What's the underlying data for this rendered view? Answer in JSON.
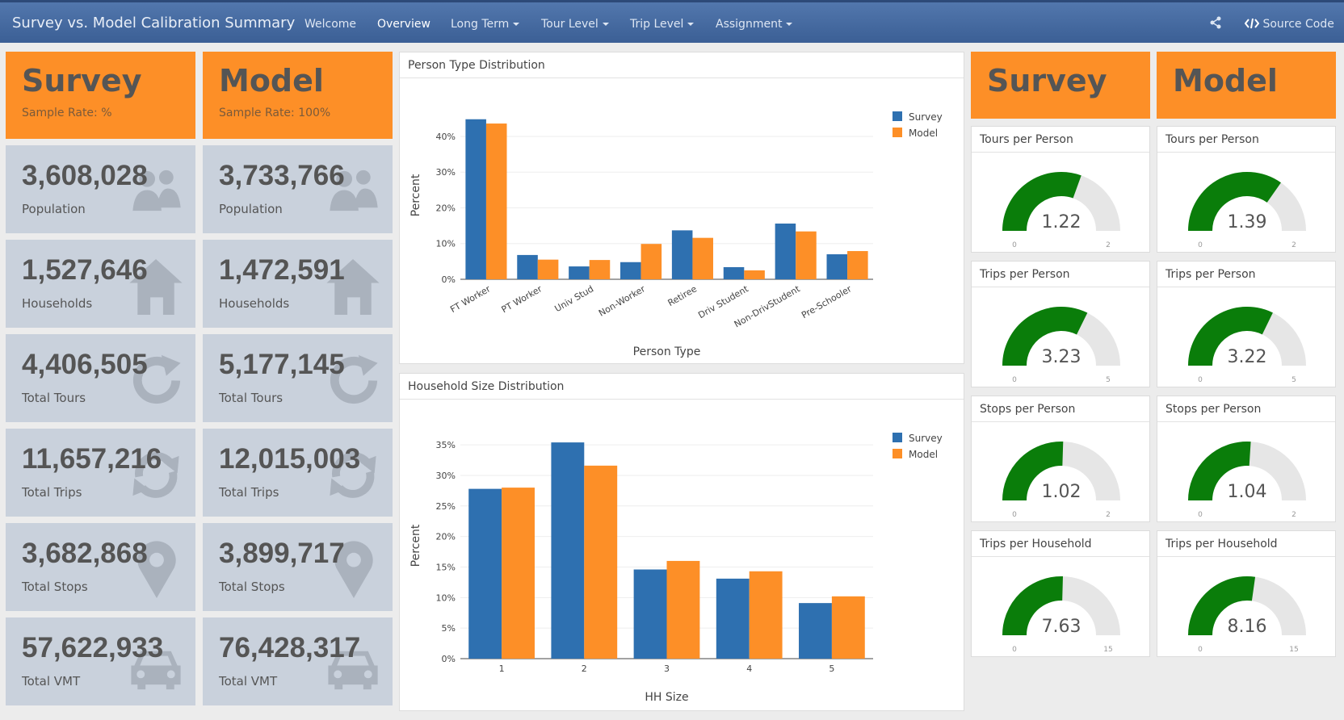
{
  "nav": {
    "title": "Survey vs. Model Calibration Summary",
    "items": [
      "Welcome",
      "Overview",
      "Long Term",
      "Tour Level",
      "Trip Level",
      "Assignment"
    ],
    "source_code": "Source Code"
  },
  "left": {
    "survey": {
      "title": "Survey",
      "sample_rate": "Sample Rate: %",
      "stats": [
        {
          "value": "3,608,028",
          "label": "Population",
          "icon": "people-icon"
        },
        {
          "value": "1,527,646",
          "label": "Households",
          "icon": "home-icon"
        },
        {
          "value": "4,406,505",
          "label": "Total Tours",
          "icon": "refresh-icon"
        },
        {
          "value": "11,657,216",
          "label": "Total Trips",
          "icon": "retweet-icon"
        },
        {
          "value": "3,682,868",
          "label": "Total Stops",
          "icon": "map-marker-icon"
        },
        {
          "value": "57,622,933",
          "label": "Total VMT",
          "icon": "car-icon"
        }
      ]
    },
    "model": {
      "title": "Model",
      "sample_rate": "Sample Rate: 100%",
      "stats": [
        {
          "value": "3,733,766",
          "label": "Population",
          "icon": "people-icon"
        },
        {
          "value": "1,472,591",
          "label": "Households",
          "icon": "home-icon"
        },
        {
          "value": "5,177,145",
          "label": "Total Tours",
          "icon": "refresh-icon"
        },
        {
          "value": "12,015,003",
          "label": "Total Trips",
          "icon": "retweet-icon"
        },
        {
          "value": "3,899,717",
          "label": "Total Stops",
          "icon": "map-marker-icon"
        },
        {
          "value": "76,428,317",
          "label": "Total VMT",
          "icon": "car-icon"
        }
      ]
    }
  },
  "colors": {
    "survey": "#2e70b0",
    "model": "#fd8f27",
    "gauge": "#0a7d0a",
    "gauge_bg": "#e6e6e6"
  },
  "chart_data": [
    {
      "type": "bar",
      "title": "Person Type Distribution",
      "xlabel": "Person Type",
      "ylabel": "Percent",
      "ylim": [
        0,
        47
      ],
      "yticks": [
        0,
        10,
        20,
        30,
        40
      ],
      "tick_suffix": "%",
      "legend": "top-right",
      "grid": true,
      "categories": [
        "FT Worker",
        "PT Worker",
        "Univ Stud",
        "Non-Worker",
        "Retiree",
        "Driv Student",
        "Non-DrivStudent",
        "Pre-Schooler"
      ],
      "series": [
        {
          "name": "Survey",
          "values": [
            44.8,
            6.8,
            3.6,
            4.8,
            13.7,
            3.4,
            15.6,
            7.0
          ]
        },
        {
          "name": "Model",
          "values": [
            43.6,
            5.5,
            5.4,
            9.9,
            11.6,
            2.5,
            13.4,
            7.9
          ]
        }
      ]
    },
    {
      "type": "bar",
      "title": "Household Size Distribution",
      "xlabel": "HH Size",
      "ylabel": "Percent",
      "ylim": [
        0,
        37
      ],
      "yticks": [
        0,
        5,
        10,
        15,
        20,
        25,
        30,
        35
      ],
      "tick_suffix": "%",
      "legend": "top-right",
      "grid": true,
      "categories": [
        "1",
        "2",
        "3",
        "4",
        "5"
      ],
      "series": [
        {
          "name": "Survey",
          "values": [
            27.8,
            35.4,
            14.6,
            13.1,
            9.1
          ]
        },
        {
          "name": "Model",
          "values": [
            28.0,
            31.6,
            16.0,
            14.3,
            10.2
          ]
        }
      ]
    }
  ],
  "right": {
    "survey": {
      "title": "Survey",
      "gauges": [
        {
          "label": "Tours per Person",
          "value": "1.22",
          "min": "0",
          "max": "2"
        },
        {
          "label": "Trips per Person",
          "value": "3.23",
          "min": "0",
          "max": "5"
        },
        {
          "label": "Stops per Person",
          "value": "1.02",
          "min": "0",
          "max": "2"
        },
        {
          "label": "Trips per Household",
          "value": "7.63",
          "min": "0",
          "max": "15"
        }
      ]
    },
    "model": {
      "title": "Model",
      "gauges": [
        {
          "label": "Tours per Person",
          "value": "1.39",
          "min": "0",
          "max": "2"
        },
        {
          "label": "Trips per Person",
          "value": "3.22",
          "min": "0",
          "max": "5"
        },
        {
          "label": "Stops per Person",
          "value": "1.04",
          "min": "0",
          "max": "2"
        },
        {
          "label": "Trips per Household",
          "value": "8.16",
          "min": "0",
          "max": "15"
        }
      ]
    }
  }
}
